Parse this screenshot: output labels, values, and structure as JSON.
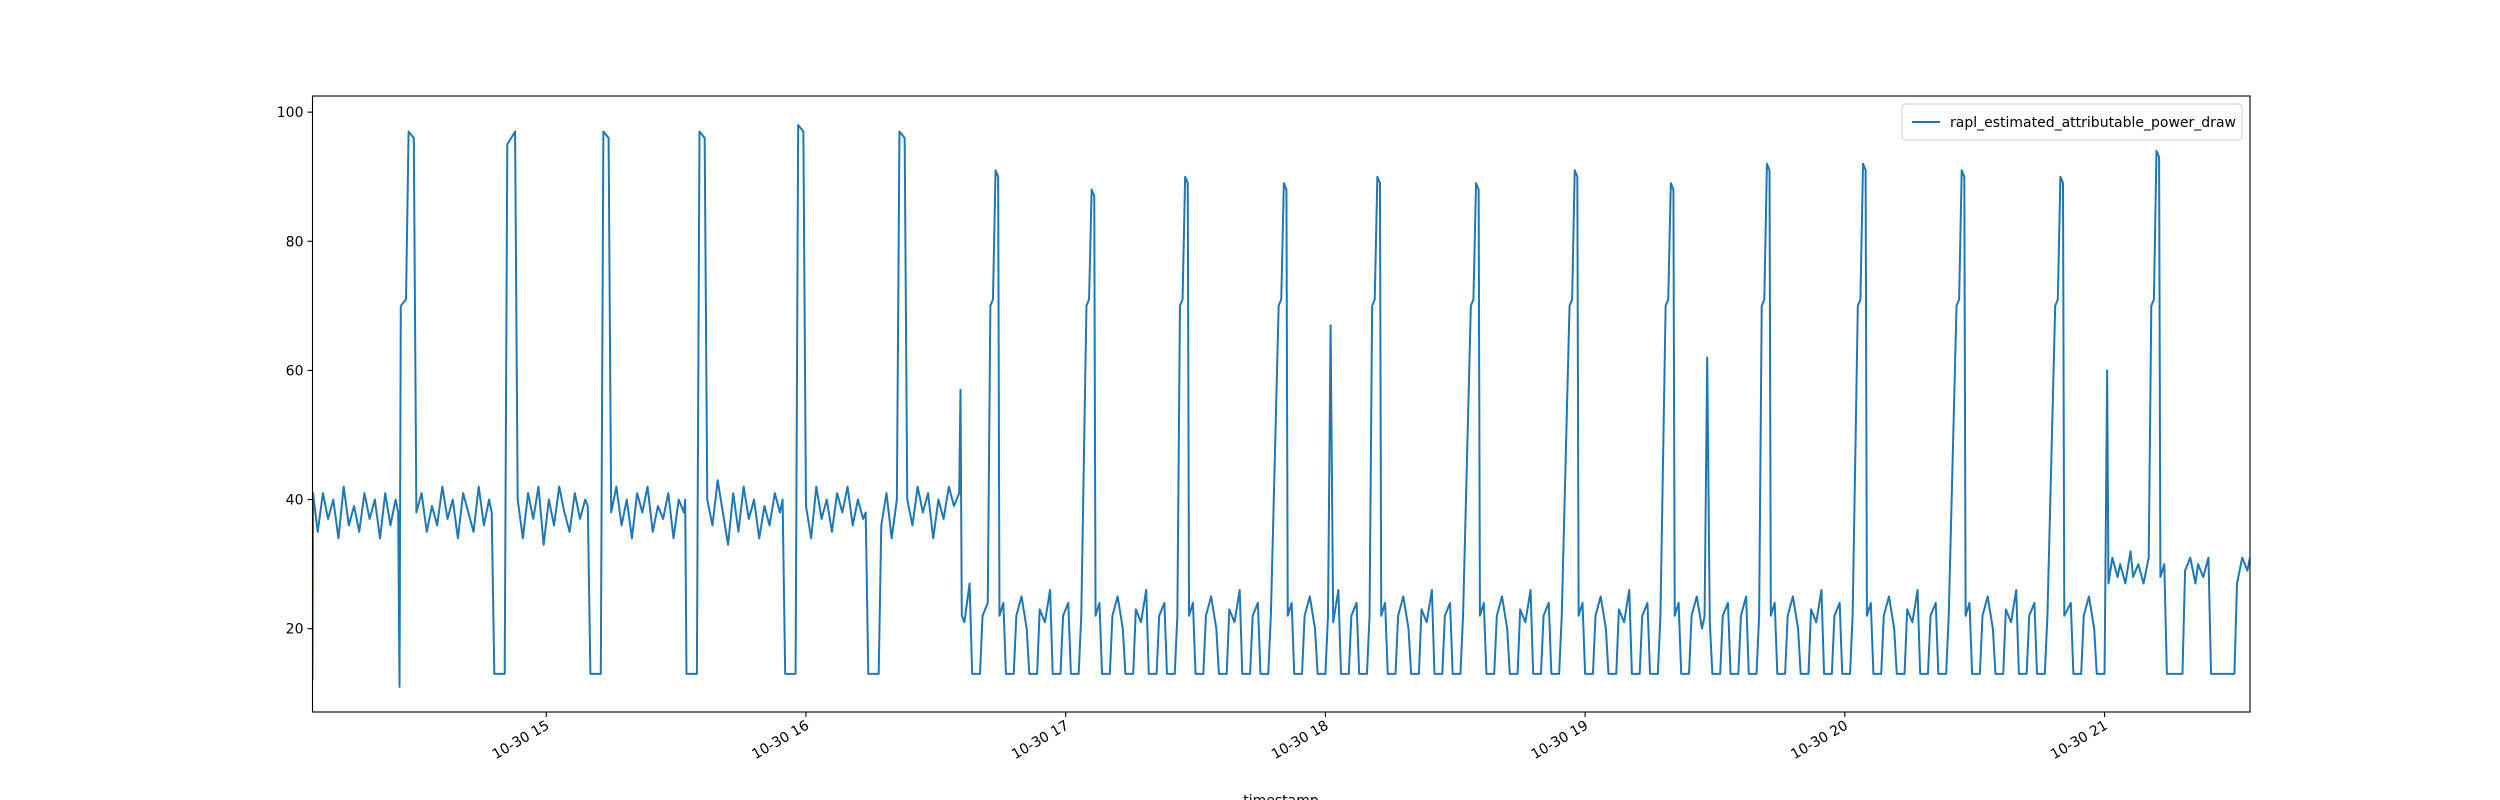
{
  "chart_data": {
    "type": "line",
    "xlabel": "timestamp",
    "x": [
      14.1,
      14.102,
      14.12,
      14.14,
      14.16,
      14.18,
      14.2,
      14.22,
      14.24,
      14.26,
      14.28,
      14.3,
      14.32,
      14.34,
      14.36,
      14.38,
      14.4,
      14.42,
      14.43,
      14.435,
      14.44,
      14.46,
      14.47,
      14.49,
      14.5,
      14.52,
      14.54,
      14.56,
      14.58,
      14.6,
      14.62,
      14.64,
      14.66,
      14.68,
      14.7,
      14.72,
      14.74,
      14.76,
      14.78,
      14.79,
      14.8,
      14.84,
      14.85,
      14.88,
      14.89,
      14.91,
      14.93,
      14.95,
      14.97,
      14.99,
      15.01,
      15.03,
      15.05,
      15.07,
      15.09,
      15.11,
      15.13,
      15.15,
      15.16,
      15.17,
      15.21,
      15.22,
      15.24,
      15.25,
      15.27,
      15.29,
      15.31,
      15.33,
      15.35,
      15.37,
      15.39,
      15.41,
      15.43,
      15.45,
      15.47,
      15.49,
      15.51,
      15.53,
      15.535,
      15.54,
      15.58,
      15.59,
      15.61,
      15.62,
      15.64,
      15.66,
      15.68,
      15.7,
      15.72,
      15.74,
      15.76,
      15.78,
      15.8,
      15.82,
      15.84,
      15.86,
      15.88,
      15.9,
      15.91,
      15.92,
      15.96,
      15.97,
      15.99,
      16,
      16.02,
      16.04,
      16.06,
      16.08,
      16.1,
      16.12,
      16.14,
      16.16,
      16.18,
      16.2,
      16.22,
      16.23,
      16.24,
      16.28,
      16.29,
      16.31,
      16.33,
      16.35,
      16.36,
      16.38,
      16.39,
      16.41,
      16.43,
      16.45,
      16.47,
      16.49,
      16.51,
      16.53,
      16.55,
      16.57,
      16.59,
      16.595,
      16.6,
      16.61,
      16.63,
      16.64,
      16.67,
      16.68,
      16.7,
      16.71,
      16.72,
      16.73,
      16.74,
      16.745,
      16.76,
      16.77,
      16.8,
      16.81,
      16.83,
      16.85,
      16.86,
      16.89,
      16.9,
      16.92,
      16.94,
      16.95,
      16.98,
      16.99,
      17.01,
      17.02,
      17.05,
      17.06,
      17.08,
      17.09,
      17.1,
      17.11,
      17.115,
      17.13,
      17.14,
      17.17,
      17.18,
      17.2,
      17.22,
      17.23,
      17.26,
      17.27,
      17.29,
      17.31,
      17.32,
      17.35,
      17.36,
      17.38,
      17.39,
      17.42,
      17.43,
      17.44,
      17.45,
      17.46,
      17.47,
      17.475,
      17.49,
      17.5,
      17.53,
      17.54,
      17.56,
      17.58,
      17.59,
      17.62,
      17.63,
      17.65,
      17.67,
      17.68,
      17.71,
      17.72,
      17.74,
      17.75,
      17.78,
      17.79,
      17.82,
      17.83,
      17.84,
      17.85,
      17.855,
      17.87,
      17.88,
      17.91,
      17.92,
      17.94,
      17.96,
      17.97,
      18,
      18.01,
      18.02,
      18.03,
      18.05,
      18.06,
      18.09,
      18.1,
      18.12,
      18.13,
      18.16,
      18.17,
      18.18,
      18.19,
      18.2,
      18.21,
      18.215,
      18.23,
      18.24,
      18.27,
      18.28,
      18.3,
      18.32,
      18.33,
      18.36,
      18.37,
      18.39,
      18.41,
      18.42,
      18.45,
      18.46,
      18.48,
      18.49,
      18.52,
      18.53,
      18.56,
      18.57,
      18.58,
      18.59,
      18.595,
      18.61,
      18.62,
      18.65,
      18.66,
      18.68,
      18.7,
      18.71,
      18.74,
      18.75,
      18.77,
      18.79,
      18.8,
      18.83,
      18.84,
      18.86,
      18.87,
      18.9,
      18.91,
      18.94,
      18.95,
      18.96,
      18.97,
      18.975,
      18.99,
      19,
      19.03,
      19.04,
      19.06,
      19.08,
      19.09,
      19.12,
      19.13,
      19.15,
      19.17,
      19.18,
      19.21,
      19.22,
      19.24,
      19.25,
      19.28,
      19.29,
      19.31,
      19.32,
      19.33,
      19.34,
      19.345,
      19.36,
      19.37,
      19.4,
      19.41,
      19.43,
      19.45,
      19.46,
      19.47,
      19.48,
      19.49,
      19.52,
      19.53,
      19.55,
      19.56,
      19.59,
      19.6,
      19.62,
      19.63,
      19.66,
      19.67,
      19.68,
      19.69,
      19.7,
      19.71,
      19.715,
      19.73,
      19.74,
      19.77,
      19.78,
      19.8,
      19.82,
      19.83,
      19.86,
      19.87,
      19.89,
      19.91,
      19.92,
      19.95,
      19.96,
      19.98,
      19.99,
      20.02,
      20.03,
      20.05,
      20.06,
      20.07,
      20.08,
      20.085,
      20.1,
      20.11,
      20.14,
      20.15,
      20.17,
      20.19,
      20.2,
      20.23,
      20.24,
      20.26,
      20.28,
      20.29,
      20.32,
      20.33,
      20.35,
      20.36,
      20.39,
      20.4,
      20.43,
      20.44,
      20.45,
      20.46,
      20.465,
      20.48,
      20.49,
      20.52,
      20.53,
      20.55,
      20.57,
      20.58,
      20.61,
      20.62,
      20.64,
      20.66,
      20.67,
      20.7,
      20.71,
      20.73,
      20.74,
      20.77,
      20.78,
      20.81,
      20.82,
      20.83,
      20.84,
      20.845,
      20.87,
      20.88,
      20.91,
      20.92,
      20.94,
      20.96,
      20.97,
      21,
      21.01,
      21.015,
      21.03,
      21.05,
      21.06,
      21.08,
      21.1,
      21.11,
      21.13,
      21.15,
      21.17,
      21.18,
      21.19,
      21.2,
      21.21,
      21.215,
      21.23,
      21.24,
      21.3,
      21.31,
      21.33,
      21.35,
      21.36,
      21.38,
      21.4,
      21.41,
      21.5,
      21.51,
      21.53,
      21.55,
      21.56
    ],
    "series": [
      {
        "name": "rapl_estimated_attributable_power_draw",
        "color": "#1f77b4",
        "values": [
          12,
          41,
          35,
          41,
          37,
          40,
          34,
          42,
          36,
          39,
          35,
          41,
          37,
          40,
          34,
          41,
          36,
          40,
          38,
          11,
          70,
          71,
          97,
          96,
          38,
          41,
          35,
          39,
          36,
          42,
          37,
          40,
          34,
          41,
          38,
          35,
          42,
          36,
          40,
          38,
          13,
          13,
          95,
          97,
          40,
          34,
          41,
          37,
          42,
          33,
          40,
          36,
          42,
          38,
          35,
          41,
          37,
          40,
          39,
          13,
          13,
          97,
          96,
          38,
          42,
          36,
          40,
          34,
          41,
          38,
          42,
          35,
          39,
          37,
          41,
          34,
          40,
          38,
          40,
          13,
          13,
          97,
          96,
          40,
          36,
          43,
          38,
          33,
          41,
          35,
          42,
          37,
          40,
          34,
          39,
          36,
          41,
          38,
          40,
          13,
          13,
          98,
          97,
          39,
          34,
          42,
          37,
          40,
          35,
          41,
          38,
          42,
          36,
          40,
          37,
          38,
          13,
          13,
          36,
          41,
          34,
          40,
          97,
          96,
          40,
          36,
          42,
          38,
          41,
          34,
          40,
          37,
          42,
          39,
          41,
          57,
          22,
          21,
          27,
          13,
          13,
          22,
          24,
          70,
          71,
          91,
          90,
          22,
          24,
          13,
          13,
          22,
          25,
          20,
          13,
          13,
          23,
          21,
          26,
          13,
          13,
          22,
          24,
          13,
          13,
          22,
          70,
          71,
          88,
          87,
          22,
          24,
          13,
          13,
          22,
          25,
          20,
          13,
          13,
          23,
          21,
          26,
          13,
          13,
          22,
          24,
          13,
          13,
          22,
          70,
          71,
          90,
          89,
          22,
          24,
          13,
          13,
          22,
          25,
          20,
          13,
          13,
          23,
          21,
          26,
          13,
          13,
          22,
          24,
          13,
          13,
          22,
          70,
          71,
          89,
          88,
          22,
          24,
          13,
          13,
          22,
          25,
          20,
          13,
          13,
          22,
          67,
          21,
          26,
          13,
          13,
          22,
          24,
          13,
          13,
          22,
          70,
          71,
          90,
          89,
          22,
          24,
          13,
          13,
          22,
          25,
          20,
          13,
          13,
          23,
          21,
          26,
          13,
          13,
          22,
          24,
          13,
          13,
          22,
          70,
          71,
          89,
          88,
          22,
          24,
          13,
          13,
          22,
          25,
          20,
          13,
          13,
          23,
          21,
          26,
          13,
          13,
          22,
          24,
          13,
          13,
          22,
          70,
          71,
          91,
          90,
          22,
          24,
          13,
          13,
          22,
          25,
          20,
          13,
          13,
          23,
          21,
          26,
          13,
          13,
          22,
          24,
          13,
          13,
          22,
          70,
          71,
          89,
          88,
          22,
          24,
          13,
          13,
          22,
          25,
          20,
          22,
          62,
          21,
          13,
          13,
          22,
          24,
          13,
          13,
          22,
          25,
          13,
          13,
          22,
          70,
          71,
          92,
          91,
          22,
          24,
          13,
          13,
          22,
          25,
          20,
          13,
          13,
          23,
          21,
          26,
          13,
          13,
          22,
          24,
          13,
          13,
          22,
          70,
          71,
          92,
          91,
          22,
          24,
          13,
          13,
          22,
          25,
          20,
          13,
          13,
          23,
          21,
          26,
          13,
          13,
          22,
          24,
          13,
          13,
          22,
          70,
          71,
          91,
          90,
          22,
          24,
          13,
          13,
          22,
          25,
          20,
          13,
          13,
          23,
          21,
          26,
          13,
          13,
          22,
          24,
          13,
          13,
          22,
          70,
          71,
          90,
          89,
          22,
          24,
          13,
          13,
          22,
          25,
          20,
          13,
          13,
          60,
          27,
          31,
          28,
          30,
          27,
          32,
          28,
          30,
          27,
          31,
          70,
          71,
          94,
          93,
          28,
          30,
          13,
          13,
          29,
          31,
          27,
          30,
          28,
          31,
          13,
          13,
          27,
          31,
          29,
          31
        ]
      }
    ],
    "xlim": [
      14.1,
      21.56
    ],
    "xticks": [
      {
        "value": 15,
        "label": "10-30 15"
      },
      {
        "value": 16,
        "label": "10-30 16"
      },
      {
        "value": 17,
        "label": "10-30 17"
      },
      {
        "value": 18,
        "label": "10-30 18"
      },
      {
        "value": 19,
        "label": "10-30 19"
      },
      {
        "value": 20,
        "label": "10-30 20"
      },
      {
        "value": 21,
        "label": "10-30 21"
      }
    ],
    "ylim": [
      7.1,
      102.5
    ],
    "yticks": [
      20,
      40,
      60,
      80,
      100
    ],
    "grid": false,
    "legend": "upper right"
  }
}
